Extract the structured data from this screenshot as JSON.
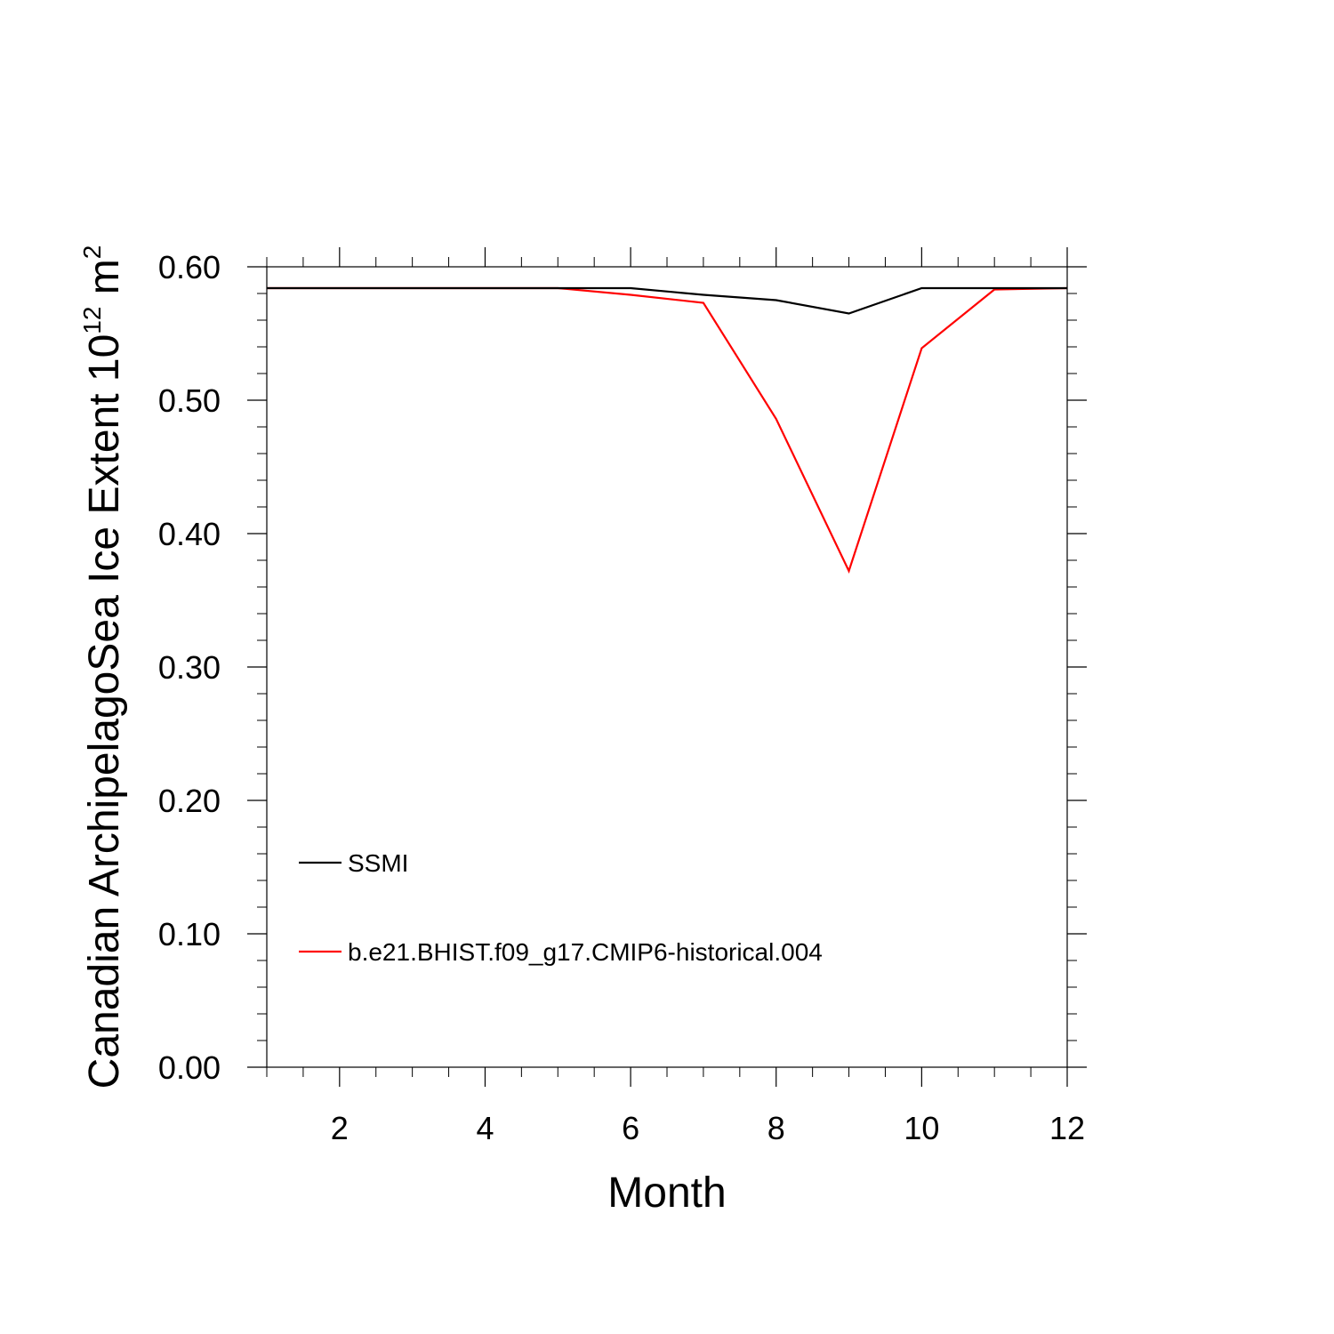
{
  "chart_data": {
    "type": "line",
    "title": "",
    "xlabel": "Month",
    "ylabel": {
      "main": "Canadian ArchipelagoSea Ice Extent 10",
      "superscript": "12",
      "unit": " m",
      "unit_superscript": "2"
    },
    "xlim": [
      1,
      12
    ],
    "ylim": [
      0.0,
      0.6
    ],
    "x_ticks": [
      2,
      4,
      6,
      8,
      10,
      12
    ],
    "x_tick_labels": [
      "2",
      "4",
      "6",
      "8",
      "10",
      "12"
    ],
    "y_ticks": [
      0.0,
      0.1,
      0.2,
      0.3,
      0.4,
      0.5,
      0.6
    ],
    "y_tick_labels": [
      "0.00",
      "0.10",
      "0.20",
      "0.30",
      "0.40",
      "0.50",
      "0.60"
    ],
    "grid": false,
    "legend_position": "lower-left",
    "x": [
      1,
      2,
      3,
      4,
      5,
      6,
      7,
      8,
      9,
      10,
      11,
      12
    ],
    "series": [
      {
        "name": "SSMI",
        "color": "#000000",
        "values": [
          0.584,
          0.584,
          0.584,
          0.584,
          0.584,
          0.584,
          0.579,
          0.575,
          0.565,
          0.584,
          0.584,
          0.584
        ]
      },
      {
        "name": "b.e21.BHIST.f09_g17.CMIP6-historical.004",
        "color": "#ff0000",
        "values": [
          0.584,
          0.584,
          0.584,
          0.584,
          0.584,
          0.579,
          0.573,
          0.486,
          0.372,
          0.539,
          0.583,
          0.584
        ]
      }
    ]
  }
}
